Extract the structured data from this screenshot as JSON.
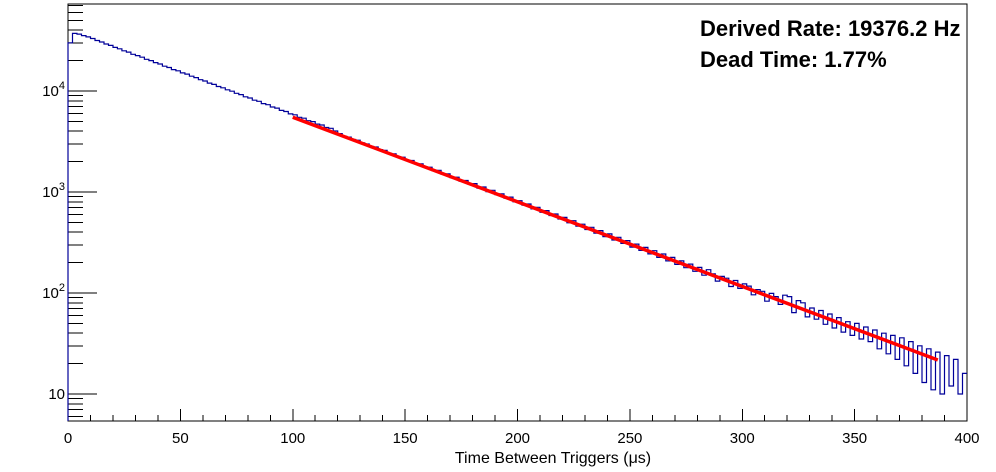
{
  "chart_data": {
    "type": "bar",
    "subtype": "step-histogram-logy",
    "title": "",
    "xlabel": "Time Between Triggers (μs)",
    "ylabel": "",
    "xlim": [
      0,
      400
    ],
    "ylim": [
      5.4,
      72700
    ],
    "y_scale": "log",
    "grid": false,
    "legend_position": "none",
    "x_major_ticks": [
      0,
      50,
      100,
      150,
      200,
      250,
      300,
      350,
      400
    ],
    "x_minor_step": 10,
    "y_major_ticks": [
      {
        "value": 10,
        "base": "10",
        "exp": ""
      },
      {
        "value": 100,
        "base": "10",
        "exp": "2"
      },
      {
        "value": 1000,
        "base": "10",
        "exp": "3"
      },
      {
        "value": 10000,
        "base": "10",
        "exp": "4"
      }
    ],
    "bin_width_us": 2,
    "colors": {
      "histogram": "#000099",
      "fit": "#ff0000",
      "stats_text": "#ff0000",
      "axis": "#000000"
    },
    "series": [
      {
        "name": "time-between-triggers-histogram",
        "type": "step",
        "color": "#000099",
        "values": [
          30000,
          37200,
          36600,
          35400,
          34300,
          33100,
          31600,
          30600,
          29200,
          28300,
          27000,
          26200,
          25000,
          24300,
          23100,
          22400,
          21600,
          20600,
          20000,
          19100,
          18500,
          17600,
          17100,
          16300,
          15850,
          15100,
          14700,
          14000,
          13560,
          12950,
          12550,
          11980,
          11620,
          11090,
          10760,
          10270,
          9960,
          9490,
          9220,
          8770,
          8530,
          8110,
          7900,
          7510,
          7310,
          6950,
          6770,
          6420,
          6270,
          5940,
          5810,
          5490,
          5380,
          5080,
          4980,
          4700,
          4610,
          4350,
          4270,
          4020,
          3790,
          3560,
          3500,
          3310,
          3260,
          3060,
          2990,
          2820,
          2790,
          2630,
          2580,
          2410,
          2390,
          2240,
          2210,
          2060,
          2050,
          1910,
          1900,
          1770,
          1760,
          1630,
          1640,
          1500,
          1510,
          1390,
          1400,
          1280,
          1300,
          1190,
          1210,
          1090,
          1120,
          1010,
          1040,
          940,
          960,
          870,
          890,
          800,
          820,
          740,
          760,
          680,
          705,
          630,
          655,
          585,
          605,
          540,
          560,
          495,
          520,
          460,
          480,
          425,
          447,
          392,
          415,
          362,
          385,
          335,
          356,
          310,
          330,
          285,
          305,
          264,
          283,
          244,
          262,
          225,
          243,
          208,
          225,
          192,
          208,
          178,
          193,
          164,
          179,
          150,
          170,
          155,
          131,
          146,
          140,
          116,
          133,
          111,
          123,
          117,
          96,
          108,
          104,
          83,
          99,
          92,
          77,
          95,
          92,
          64,
          84,
          80,
          58,
          71,
          55,
          67,
          49,
          62,
          45,
          57,
          41,
          52,
          38,
          50,
          35,
          46,
          33,
          43,
          28,
          40,
          25,
          38,
          22,
          36,
          19,
          33,
          16,
          30,
          13,
          28,
          11,
          26,
          10,
          24,
          12,
          22,
          10,
          16
        ]
      },
      {
        "name": "exponential-fit",
        "type": "line",
        "color": "#ff0000",
        "fit": {
          "x_start": 100,
          "x_end": 387,
          "v_start": 5500,
          "v_end": 21.7
        }
      }
    ],
    "annotations": [
      {
        "name": "derived-rate",
        "text": "Derived Rate: 19376.2 Hz",
        "value": 19376.2,
        "unit": "Hz"
      },
      {
        "name": "dead-time",
        "text": "Dead Time: 1.77%",
        "value": 1.77,
        "unit": "%"
      }
    ]
  }
}
